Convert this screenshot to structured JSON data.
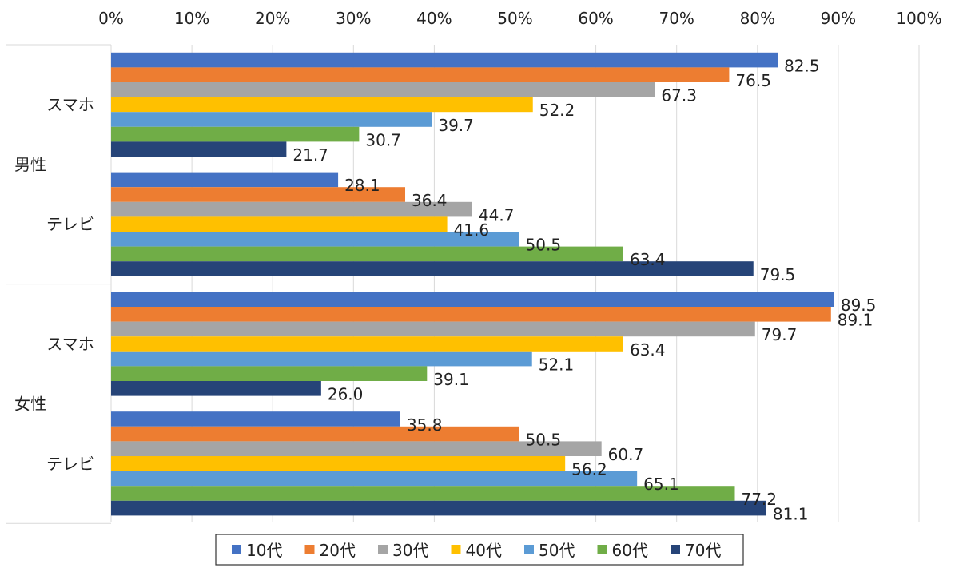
{
  "chart_data": {
    "type": "bar",
    "orientation": "horizontal",
    "title": "",
    "xlabel": "",
    "ylabel": "",
    "xlim": [
      0,
      100
    ],
    "x_ticks": [
      "0%",
      "10%",
      "20%",
      "30%",
      "40%",
      "50%",
      "60%",
      "70%",
      "80%",
      "90%",
      "100%"
    ],
    "x_axis_position": "top",
    "grid": true,
    "legend_position": "bottom",
    "groups": [
      {
        "label": "男性",
        "categories": [
          {
            "label": "スマホ",
            "values": [
              82.5,
              76.5,
              67.3,
              52.2,
              39.7,
              30.7,
              21.7
            ]
          },
          {
            "label": "テレビ",
            "values": [
              28.1,
              36.4,
              44.7,
              41.6,
              50.5,
              63.4,
              79.5
            ]
          }
        ]
      },
      {
        "label": "女性",
        "categories": [
          {
            "label": "スマホ",
            "values": [
              89.5,
              89.1,
              79.7,
              63.4,
              52.1,
              39.1,
              26.0
            ]
          },
          {
            "label": "テレビ",
            "values": [
              35.8,
              50.5,
              60.7,
              56.2,
              65.1,
              77.2,
              81.1
            ]
          }
        ]
      }
    ],
    "series": [
      {
        "name": "10代",
        "color": "#4472C4"
      },
      {
        "name": "20代",
        "color": "#ED7D31"
      },
      {
        "name": "30代",
        "color": "#A5A5A5"
      },
      {
        "name": "40代",
        "color": "#FFC000"
      },
      {
        "name": "50代",
        "color": "#5B9BD5"
      },
      {
        "name": "60代",
        "color": "#70AD47"
      },
      {
        "name": "70代",
        "color": "#264478"
      }
    ]
  }
}
